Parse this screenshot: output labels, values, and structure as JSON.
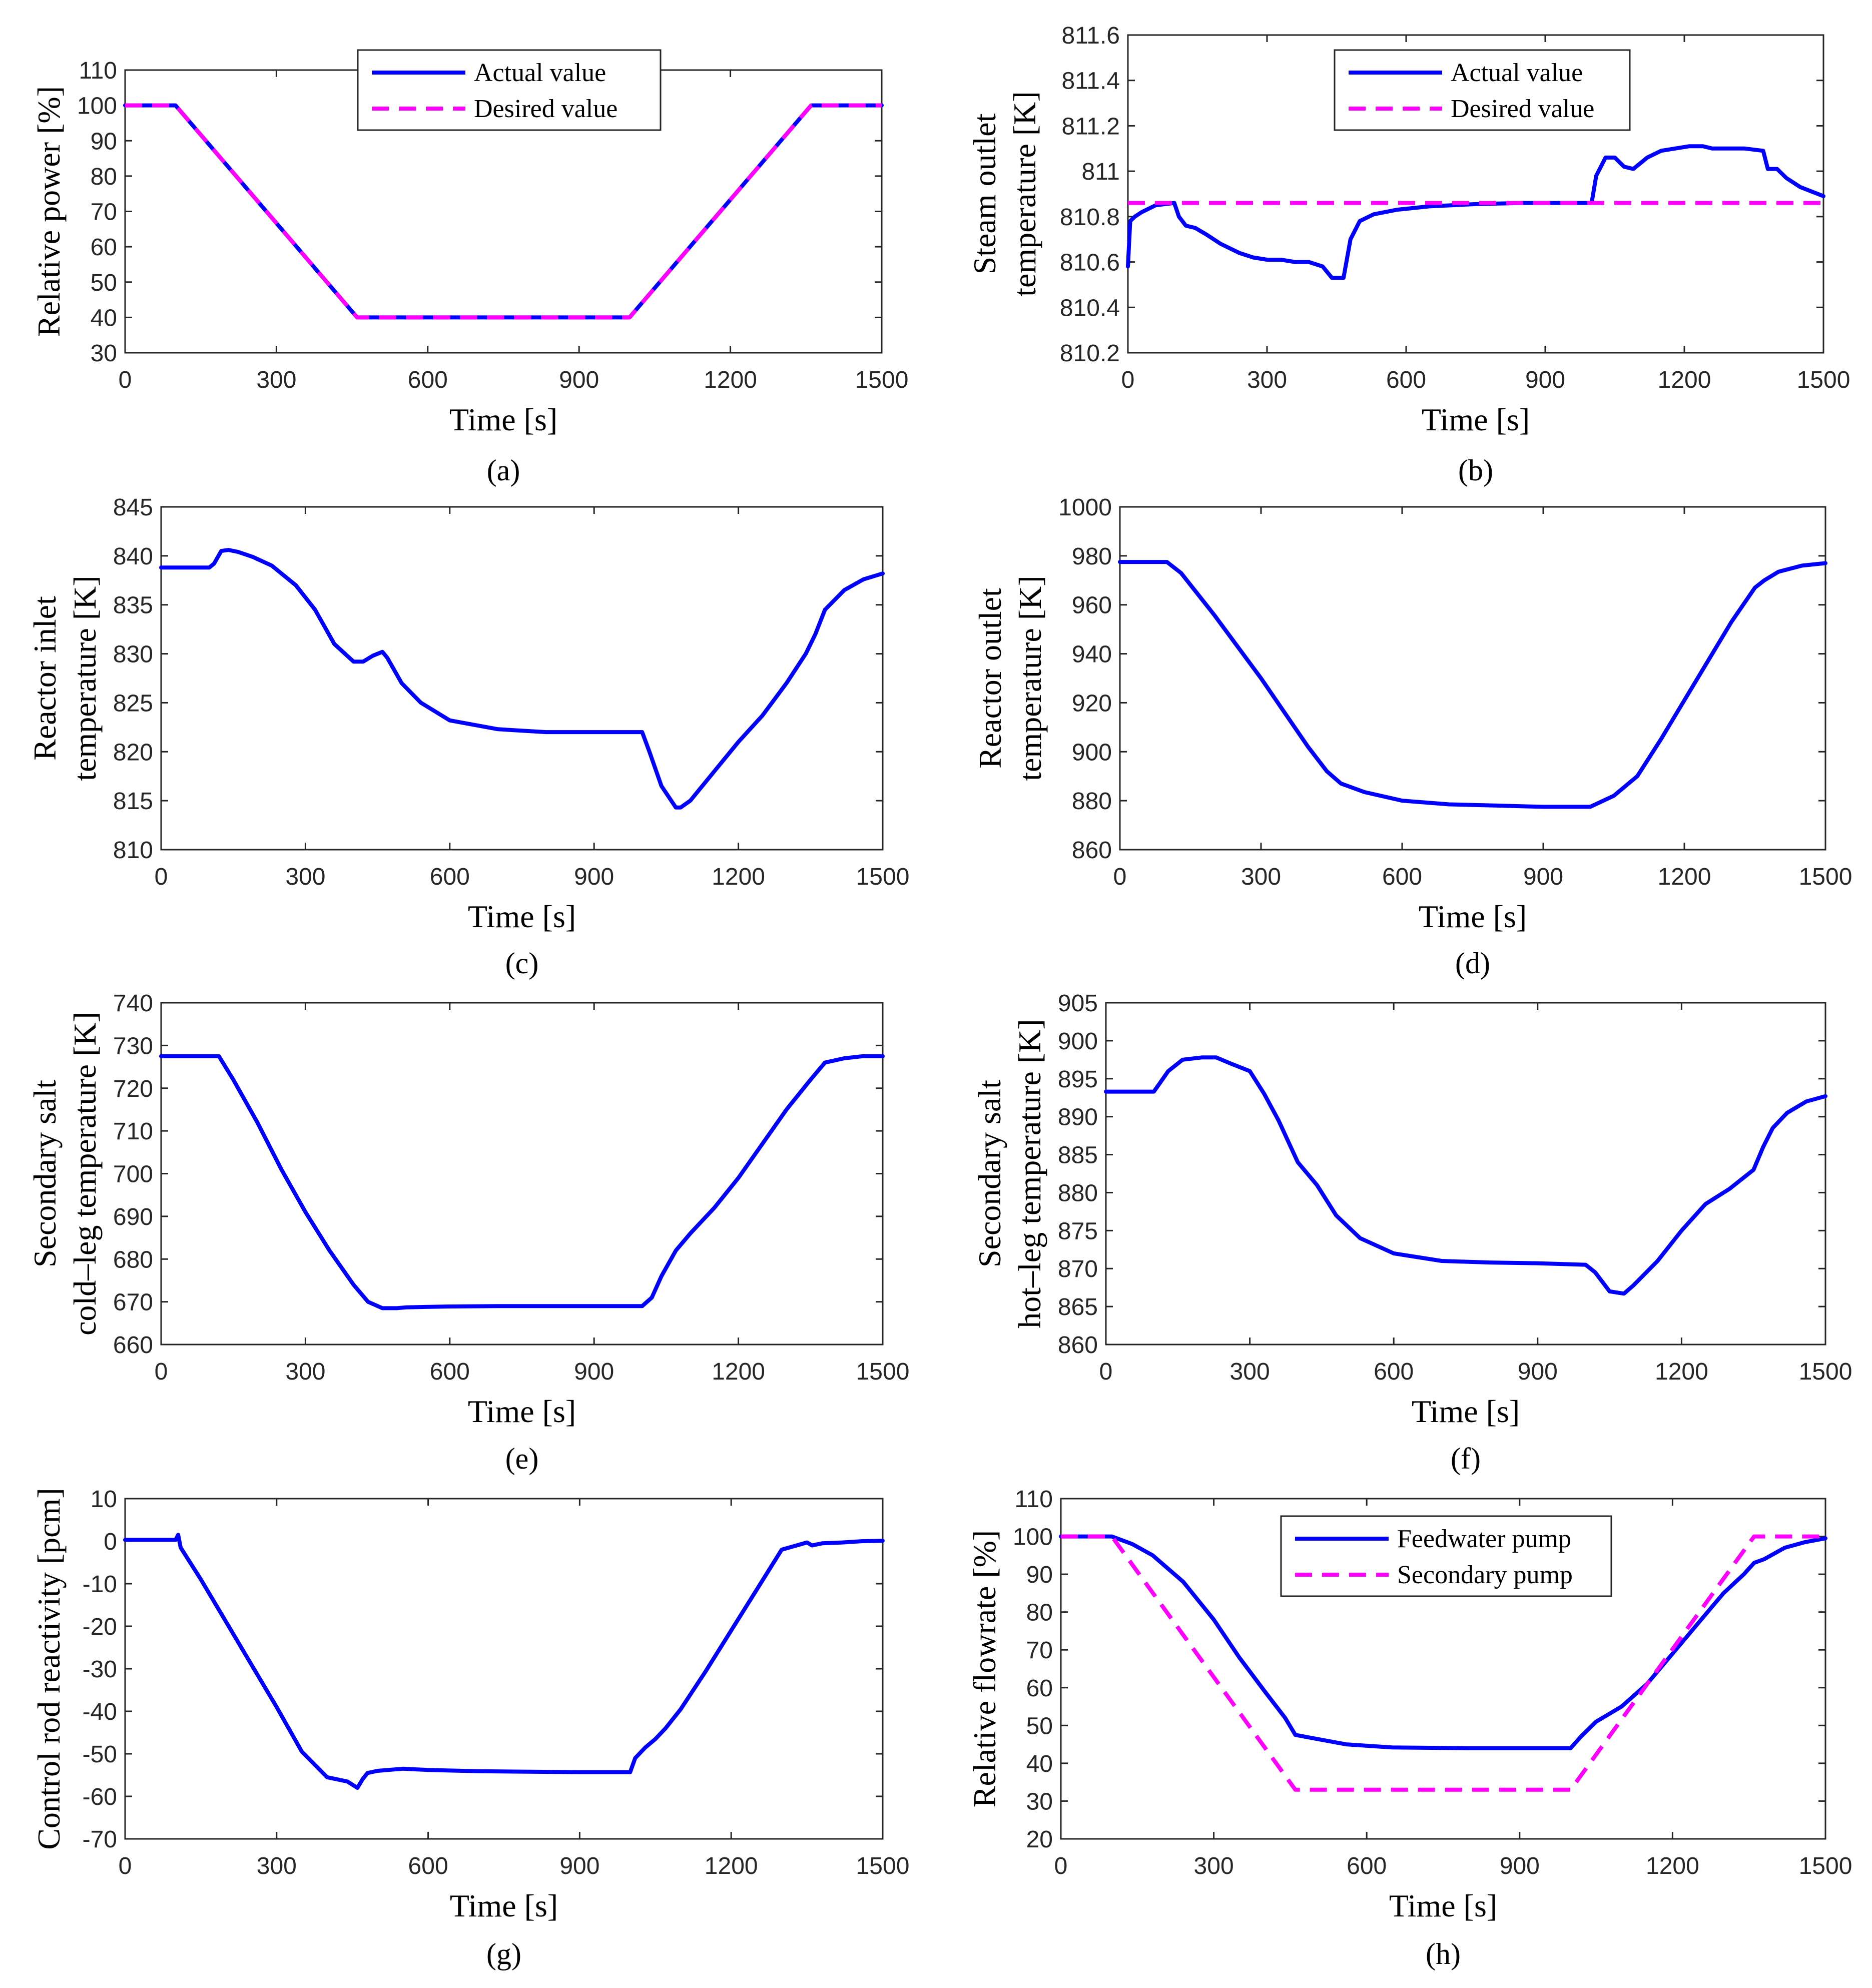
{
  "colors": {
    "actual": "#0000ff",
    "desired": "#ff00ff",
    "axis": "#262626"
  },
  "chart_data": [
    {
      "type": "line",
      "caption": "(a)",
      "xlabel": "Time [s]",
      "ylabel": [
        "Relative power [%]"
      ],
      "xlim": [
        0,
        1500
      ],
      "ylim": [
        30,
        110
      ],
      "xticks": [
        0,
        300,
        600,
        900,
        1200,
        1500
      ],
      "yticks": [
        30,
        40,
        50,
        60,
        70,
        80,
        90,
        100,
        110
      ],
      "legend": "top-center",
      "series": [
        {
          "name": "Actual value",
          "style": "solid",
          "color": "#0000ff",
          "x": [
            0,
            100,
            460,
            1000,
            1360,
            1500
          ],
          "y": [
            100,
            100,
            40,
            40,
            100,
            100
          ]
        },
        {
          "name": "Desired value",
          "style": "dashed",
          "color": "#ff00ff",
          "x": [
            0,
            100,
            460,
            1000,
            1360,
            1500
          ],
          "y": [
            100,
            100,
            40,
            40,
            100,
            100
          ]
        }
      ]
    },
    {
      "type": "line",
      "caption": "(b)",
      "xlabel": "Time [s]",
      "ylabel": [
        "Steam outlet",
        "temperature [K]"
      ],
      "xlim": [
        0,
        1500
      ],
      "ylim": [
        810.2,
        811.6
      ],
      "xticks": [
        0,
        300,
        600,
        900,
        1200,
        1500
      ],
      "yticks": [
        810.2,
        810.4,
        810.6,
        810.8,
        811,
        811.2,
        811.4,
        811.6
      ],
      "ytick_labels": [
        "810.2",
        "810.4",
        "810.6",
        "810.8",
        "811",
        "811.2",
        "811.4",
        "811.6"
      ],
      "legend": "top-center",
      "series": [
        {
          "name": "Actual value",
          "style": "solid",
          "color": "#0000ff",
          "x": [
            0,
            5,
            15,
            30,
            60,
            100,
            110,
            125,
            145,
            170,
            200,
            240,
            270,
            300,
            330,
            360,
            390,
            420,
            440,
            465,
            480,
            500,
            530,
            580,
            650,
            750,
            850,
            1000,
            1010,
            1030,
            1050,
            1070,
            1090,
            1120,
            1150,
            1180,
            1210,
            1240,
            1260,
            1290,
            1330,
            1370,
            1380,
            1400,
            1420,
            1450,
            1500
          ],
          "y": [
            810.58,
            810.78,
            810.8,
            810.82,
            810.85,
            810.86,
            810.8,
            810.76,
            810.75,
            810.72,
            810.68,
            810.64,
            810.62,
            810.61,
            810.61,
            810.6,
            810.6,
            810.58,
            810.53,
            810.53,
            810.7,
            810.78,
            810.81,
            810.83,
            810.845,
            810.855,
            810.86,
            810.86,
            810.98,
            811.06,
            811.06,
            811.02,
            811.01,
            811.06,
            811.09,
            811.1,
            811.11,
            811.11,
            811.1,
            811.1,
            811.1,
            811.09,
            811.01,
            811.01,
            810.97,
            810.93,
            810.89
          ]
        },
        {
          "name": "Desired value",
          "style": "dashed",
          "color": "#ff00ff",
          "x": [
            0,
            1500
          ],
          "y": [
            810.86,
            810.86
          ]
        }
      ]
    },
    {
      "type": "line",
      "caption": "(c)",
      "xlabel": "Time [s]",
      "ylabel": [
        "Reactor inlet",
        "temperature [K]"
      ],
      "xlim": [
        0,
        1500
      ],
      "ylim": [
        810,
        845
      ],
      "xticks": [
        0,
        300,
        600,
        900,
        1200,
        1500
      ],
      "yticks": [
        810,
        815,
        820,
        825,
        830,
        835,
        840,
        845
      ],
      "series": [
        {
          "name": "",
          "style": "solid",
          "color": "#0000ff",
          "x": [
            0,
            100,
            110,
            125,
            140,
            160,
            190,
            230,
            280,
            320,
            360,
            400,
            420,
            440,
            460,
            470,
            500,
            540,
            600,
            700,
            800,
            900,
            1000,
            1015,
            1040,
            1070,
            1080,
            1100,
            1150,
            1200,
            1250,
            1300,
            1340,
            1360,
            1380,
            1420,
            1460,
            1500
          ],
          "y": [
            838.8,
            838.8,
            839.2,
            840.5,
            840.6,
            840.4,
            839.9,
            839.0,
            837.0,
            834.5,
            831.0,
            829.2,
            829.2,
            829.8,
            830.2,
            829.6,
            827.0,
            825.0,
            823.2,
            822.3,
            822.0,
            822.0,
            822.0,
            820.0,
            816.5,
            814.3,
            814.3,
            815.0,
            818.0,
            821.0,
            823.7,
            827.0,
            830.0,
            832.0,
            834.5,
            836.5,
            837.6,
            838.2
          ]
        }
      ]
    },
    {
      "type": "line",
      "caption": "(d)",
      "xlabel": "Time [s]",
      "ylabel": [
        "Reactor outlet",
        "temperature [K]"
      ],
      "xlim": [
        0,
        1500
      ],
      "ylim": [
        860,
        1000
      ],
      "xticks": [
        0,
        300,
        600,
        900,
        1200,
        1500
      ],
      "yticks": [
        860,
        880,
        900,
        920,
        940,
        960,
        980,
        1000
      ],
      "series": [
        {
          "name": "",
          "style": "solid",
          "color": "#0000ff",
          "x": [
            0,
            100,
            130,
            200,
            300,
            400,
            440,
            470,
            520,
            600,
            700,
            800,
            900,
            1000,
            1050,
            1100,
            1150,
            1200,
            1300,
            1350,
            1370,
            1400,
            1450,
            1500
          ],
          "y": [
            977.5,
            977.5,
            973.0,
            956.0,
            930.0,
            902.0,
            892.0,
            887.0,
            883.5,
            880.0,
            878.5,
            878.0,
            877.5,
            877.5,
            882.0,
            890.0,
            905.0,
            921.0,
            953.0,
            967.0,
            970.0,
            973.5,
            976.0,
            977.0
          ]
        }
      ]
    },
    {
      "type": "line",
      "caption": "(e)",
      "xlabel": "Time [s]",
      "ylabel": [
        "Secondary salt",
        "cold–leg temperature [K]"
      ],
      "xlim": [
        0,
        1500
      ],
      "ylim": [
        660,
        740
      ],
      "xticks": [
        0,
        300,
        600,
        900,
        1200,
        1500
      ],
      "yticks": [
        660,
        670,
        680,
        690,
        700,
        710,
        720,
        730,
        740
      ],
      "series": [
        {
          "name": "",
          "style": "solid",
          "color": "#0000ff",
          "x": [
            0,
            120,
            150,
            200,
            250,
            300,
            350,
            400,
            430,
            460,
            490,
            510,
            550,
            600,
            700,
            800,
            900,
            1000,
            1020,
            1040,
            1070,
            1100,
            1150,
            1200,
            1250,
            1300,
            1350,
            1380,
            1420,
            1460,
            1500
          ],
          "y": [
            727.5,
            727.5,
            722.0,
            712.0,
            701.0,
            691.0,
            682.0,
            674.0,
            670.0,
            668.5,
            668.5,
            668.7,
            668.8,
            668.9,
            669.0,
            669.0,
            669.0,
            669.0,
            671.0,
            676.0,
            682.0,
            686.0,
            692.0,
            699.0,
            707.0,
            715.0,
            722.0,
            726.0,
            727.0,
            727.5,
            727.5
          ]
        }
      ]
    },
    {
      "type": "line",
      "caption": "(f)",
      "xlabel": "Time [s]",
      "ylabel": [
        "Secondary salt",
        "hot–leg temperature [K]"
      ],
      "xlim": [
        0,
        1500
      ],
      "ylim": [
        860,
        905
      ],
      "xticks": [
        0,
        300,
        600,
        900,
        1200,
        1500
      ],
      "yticks": [
        860,
        865,
        870,
        875,
        880,
        885,
        890,
        895,
        900,
        905
      ],
      "series": [
        {
          "name": "",
          "style": "solid",
          "color": "#0000ff",
          "x": [
            0,
            100,
            130,
            160,
            200,
            230,
            260,
            300,
            330,
            360,
            400,
            440,
            480,
            530,
            600,
            700,
            800,
            900,
            1000,
            1020,
            1050,
            1080,
            1100,
            1150,
            1200,
            1250,
            1300,
            1350,
            1370,
            1390,
            1420,
            1460,
            1500
          ],
          "y": [
            893.3,
            893.3,
            896.0,
            897.5,
            897.8,
            897.8,
            897.0,
            896.0,
            893.0,
            889.5,
            884.0,
            881.0,
            877.0,
            874.0,
            872.0,
            871.0,
            870.8,
            870.7,
            870.5,
            869.5,
            867.0,
            866.7,
            867.8,
            871.0,
            875.0,
            878.5,
            880.5,
            883.0,
            886.0,
            888.5,
            890.5,
            892.0,
            892.7
          ]
        }
      ]
    },
    {
      "type": "line",
      "caption": "(g)",
      "xlabel": "Time [s]",
      "ylabel": [
        "Control rod reactivity [pcm]"
      ],
      "xlim": [
        0,
        1500
      ],
      "ylim": [
        -70,
        10
      ],
      "xticks": [
        0,
        300,
        600,
        900,
        1200,
        1500
      ],
      "yticks": [
        -70,
        -60,
        -50,
        -40,
        -30,
        -20,
        -10,
        0,
        10
      ],
      "series": [
        {
          "name": "",
          "style": "solid",
          "color": "#0000ff",
          "x": [
            0,
            100,
            105,
            110,
            150,
            200,
            250,
            300,
            350,
            400,
            440,
            460,
            470,
            480,
            500,
            550,
            600,
            700,
            800,
            900,
            1000,
            1010,
            1030,
            1050,
            1070,
            1100,
            1150,
            1200,
            1250,
            1300,
            1350,
            1360,
            1380,
            1420,
            1460,
            1500
          ],
          "y": [
            0.3,
            0.3,
            1.5,
            -1.5,
            -9.0,
            -19.0,
            -29.0,
            -39.0,
            -49.5,
            -55.5,
            -56.5,
            -58.0,
            -56.0,
            -54.5,
            -54.0,
            -53.5,
            -53.8,
            -54.1,
            -54.2,
            -54.3,
            -54.3,
            -51.0,
            -48.5,
            -46.5,
            -44.0,
            -39.5,
            -30.5,
            -21.0,
            -11.5,
            -2.0,
            -0.3,
            -1.0,
            -0.5,
            -0.3,
            0.0,
            0.1
          ]
        }
      ]
    },
    {
      "type": "line",
      "caption": "(h)",
      "xlabel": "Time [s]",
      "ylabel": [
        "Relative flowrate [%]"
      ],
      "xlim": [
        0,
        1500
      ],
      "ylim": [
        20,
        110
      ],
      "xticks": [
        0,
        300,
        600,
        900,
        1200,
        1500
      ],
      "yticks": [
        20,
        30,
        40,
        50,
        60,
        70,
        80,
        90,
        100,
        110
      ],
      "legend": "top-center",
      "series": [
        {
          "name": "Feedwater pump",
          "style": "solid",
          "color": "#0000ff",
          "x": [
            0,
            100,
            140,
            180,
            240,
            300,
            350,
            400,
            440,
            460,
            500,
            560,
            650,
            800,
            900,
            1000,
            1020,
            1050,
            1100,
            1150,
            1200,
            1250,
            1300,
            1340,
            1360,
            1380,
            1420,
            1460,
            1500
          ],
          "y": [
            100,
            100,
            98,
            95,
            88,
            78,
            68,
            59,
            52,
            47.5,
            46.5,
            45.0,
            44.2,
            44.0,
            44.0,
            44.0,
            47.0,
            51.0,
            55.0,
            61.0,
            69.0,
            77.0,
            85.0,
            90.0,
            93.0,
            94.0,
            97.0,
            98.5,
            99.5
          ]
        },
        {
          "name": "Secondary pump",
          "style": "dashed",
          "color": "#ff00ff",
          "x": [
            0,
            100,
            460,
            1000,
            1360,
            1500
          ],
          "y": [
            100,
            100,
            33,
            33,
            100,
            100
          ]
        }
      ]
    }
  ]
}
